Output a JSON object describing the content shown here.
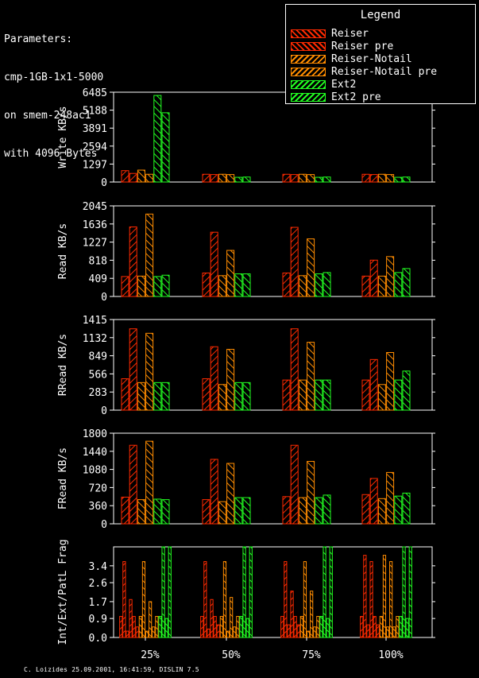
{
  "parameters": {
    "lines": [
      "Parameters:",
      "cmp-1GB-1x1-5000",
      "on smem-248ac1",
      "with 4096 Bytes"
    ]
  },
  "legend": {
    "title": "Legend",
    "items": [
      {
        "label": "Reiser",
        "color": "#ff2a00"
      },
      {
        "label": "Reiser pre",
        "color": "#ff2a00"
      },
      {
        "label": "Reiser-Notail",
        "color": "#ff8c00"
      },
      {
        "label": "Reiser-Notail pre",
        "color": "#ff8c00"
      },
      {
        "label": "Ext2",
        "color": "#22ff22"
      },
      {
        "label": "Ext2 pre",
        "color": "#22ff22"
      }
    ]
  },
  "footer": "C. Loizides 25.09.2001, 16:41:59, DISLIN 7.5",
  "chart_data": [
    {
      "type": "bar",
      "ylabel": "Write KB/s",
      "ylim": [
        0,
        6485
      ],
      "yticks": [
        "0",
        "1297",
        "2594",
        "3891",
        "5188",
        "6485"
      ],
      "categories": [
        "25%",
        "50%",
        "75%",
        "100%"
      ],
      "series": [
        {
          "name": "Reiser",
          "values": [
            820,
            560,
            560,
            560
          ]
        },
        {
          "name": "Reiser pre",
          "values": [
            620,
            540,
            540,
            540
          ]
        },
        {
          "name": "Reiser-Notail",
          "values": [
            860,
            560,
            560,
            560
          ]
        },
        {
          "name": "Reiser-Notail pre",
          "values": [
            560,
            540,
            540,
            540
          ]
        },
        {
          "name": "Ext2",
          "values": [
            6250,
            340,
            340,
            340
          ]
        },
        {
          "name": "Ext2 pre",
          "values": [
            5000,
            360,
            360,
            360
          ]
        }
      ]
    },
    {
      "type": "bar",
      "ylabel": "Read KB/s",
      "ylim": [
        0,
        2045
      ],
      "yticks": [
        "0",
        "409",
        "818",
        "1227",
        "1636",
        "2045"
      ],
      "categories": [
        "25%",
        "50%",
        "75%",
        "100%"
      ],
      "series": [
        {
          "name": "Reiser",
          "values": [
            450,
            530,
            530,
            460
          ]
        },
        {
          "name": "Reiser pre",
          "values": [
            1570,
            1450,
            1560,
            820
          ]
        },
        {
          "name": "Reiser-Notail",
          "values": [
            460,
            470,
            470,
            460
          ]
        },
        {
          "name": "Reiser-Notail pre",
          "values": [
            1860,
            1040,
            1300,
            900
          ]
        },
        {
          "name": "Ext2",
          "values": [
            450,
            510,
            510,
            540
          ]
        },
        {
          "name": "Ext2 pre",
          "values": [
            480,
            510,
            540,
            630
          ]
        }
      ]
    },
    {
      "type": "bar",
      "ylabel": "RRead KB/s",
      "ylim": [
        0,
        1415
      ],
      "yticks": [
        "0",
        "283",
        "566",
        "849",
        "1132",
        "1415"
      ],
      "categories": [
        "25%",
        "50%",
        "75%",
        "100%"
      ],
      "series": [
        {
          "name": "Reiser",
          "values": [
            490,
            490,
            470,
            470
          ]
        },
        {
          "name": "Reiser pre",
          "values": [
            1270,
            990,
            1270,
            790
          ]
        },
        {
          "name": "Reiser-Notail",
          "values": [
            430,
            400,
            470,
            400
          ]
        },
        {
          "name": "Reiser-Notail pre",
          "values": [
            1200,
            950,
            1060,
            900
          ]
        },
        {
          "name": "Ext2",
          "values": [
            430,
            430,
            470,
            470
          ]
        },
        {
          "name": "Ext2 pre",
          "values": [
            430,
            430,
            470,
            610
          ]
        }
      ]
    },
    {
      "type": "bar",
      "ylabel": "FRead KB/s",
      "ylim": [
        0,
        1800
      ],
      "yticks": [
        "0",
        "360",
        "720",
        "1080",
        "1440",
        "1800"
      ],
      "categories": [
        "25%",
        "50%",
        "75%",
        "100%"
      ],
      "series": [
        {
          "name": "Reiser",
          "values": [
            530,
            480,
            540,
            580
          ]
        },
        {
          "name": "Reiser pre",
          "values": [
            1560,
            1280,
            1560,
            900
          ]
        },
        {
          "name": "Reiser-Notail",
          "values": [
            480,
            440,
            520,
            500
          ]
        },
        {
          "name": "Reiser-Notail pre",
          "values": [
            1640,
            1200,
            1240,
            1020
          ]
        },
        {
          "name": "Ext2",
          "values": [
            490,
            520,
            520,
            550
          ]
        },
        {
          "name": "Ext2 pre",
          "values": [
            480,
            520,
            570,
            610
          ]
        }
      ]
    },
    {
      "type": "bar",
      "ylabel": "Int/Ext/PatL Frag",
      "ylim": [
        0,
        4.3
      ],
      "yticks": [
        "0.0",
        "0.9",
        "1.7",
        "2.6",
        "3.4"
      ],
      "ytick_values": [
        0.0,
        0.9,
        1.7,
        2.6,
        3.4
      ],
      "categories": [
        "25%",
        "50%",
        "75%",
        "100%"
      ],
      "note": "three bars per filesystem: Int, Ext, PatL",
      "series": [
        {
          "name": "Reiser",
          "values": [
            [
              1.0,
              3.6,
              0.3
            ],
            [
              1.0,
              3.6,
              0.4
            ],
            [
              1.0,
              3.6,
              0.6
            ],
            [
              1.0,
              3.9,
              0.6
            ]
          ]
        },
        {
          "name": "Reiser pre",
          "values": [
            [
              1.8,
              1.0,
              0.5
            ],
            [
              1.8,
              1.0,
              0.6
            ],
            [
              2.2,
              1.0,
              0.6
            ],
            [
              3.6,
              1.0,
              0.6
            ]
          ]
        },
        {
          "name": "Reiser-Notail",
          "values": [
            [
              1.0,
              3.6,
              0.3
            ],
            [
              1.0,
              3.6,
              0.3
            ],
            [
              1.0,
              3.6,
              0.3
            ],
            [
              1.0,
              3.9,
              0.5
            ]
          ]
        },
        {
          "name": "Reiser-Notail pre",
          "values": [
            [
              1.7,
              0.5,
              1.0
            ],
            [
              1.9,
              0.5,
              1.0
            ],
            [
              2.2,
              0.5,
              1.0
            ],
            [
              3.6,
              0.5,
              1.0
            ]
          ]
        },
        {
          "name": "Ext2",
          "values": [
            [
              1.0,
              4.3,
              0.9
            ],
            [
              1.0,
              4.3,
              0.9
            ],
            [
              1.0,
              4.3,
              0.9
            ],
            [
              1.0,
              4.3,
              0.9
            ]
          ]
        },
        {
          "name": "Ext2 pre",
          "values": [
            [
              4.3
            ],
            [
              4.3
            ],
            [
              4.3
            ],
            [
              4.3
            ]
          ]
        }
      ]
    }
  ]
}
